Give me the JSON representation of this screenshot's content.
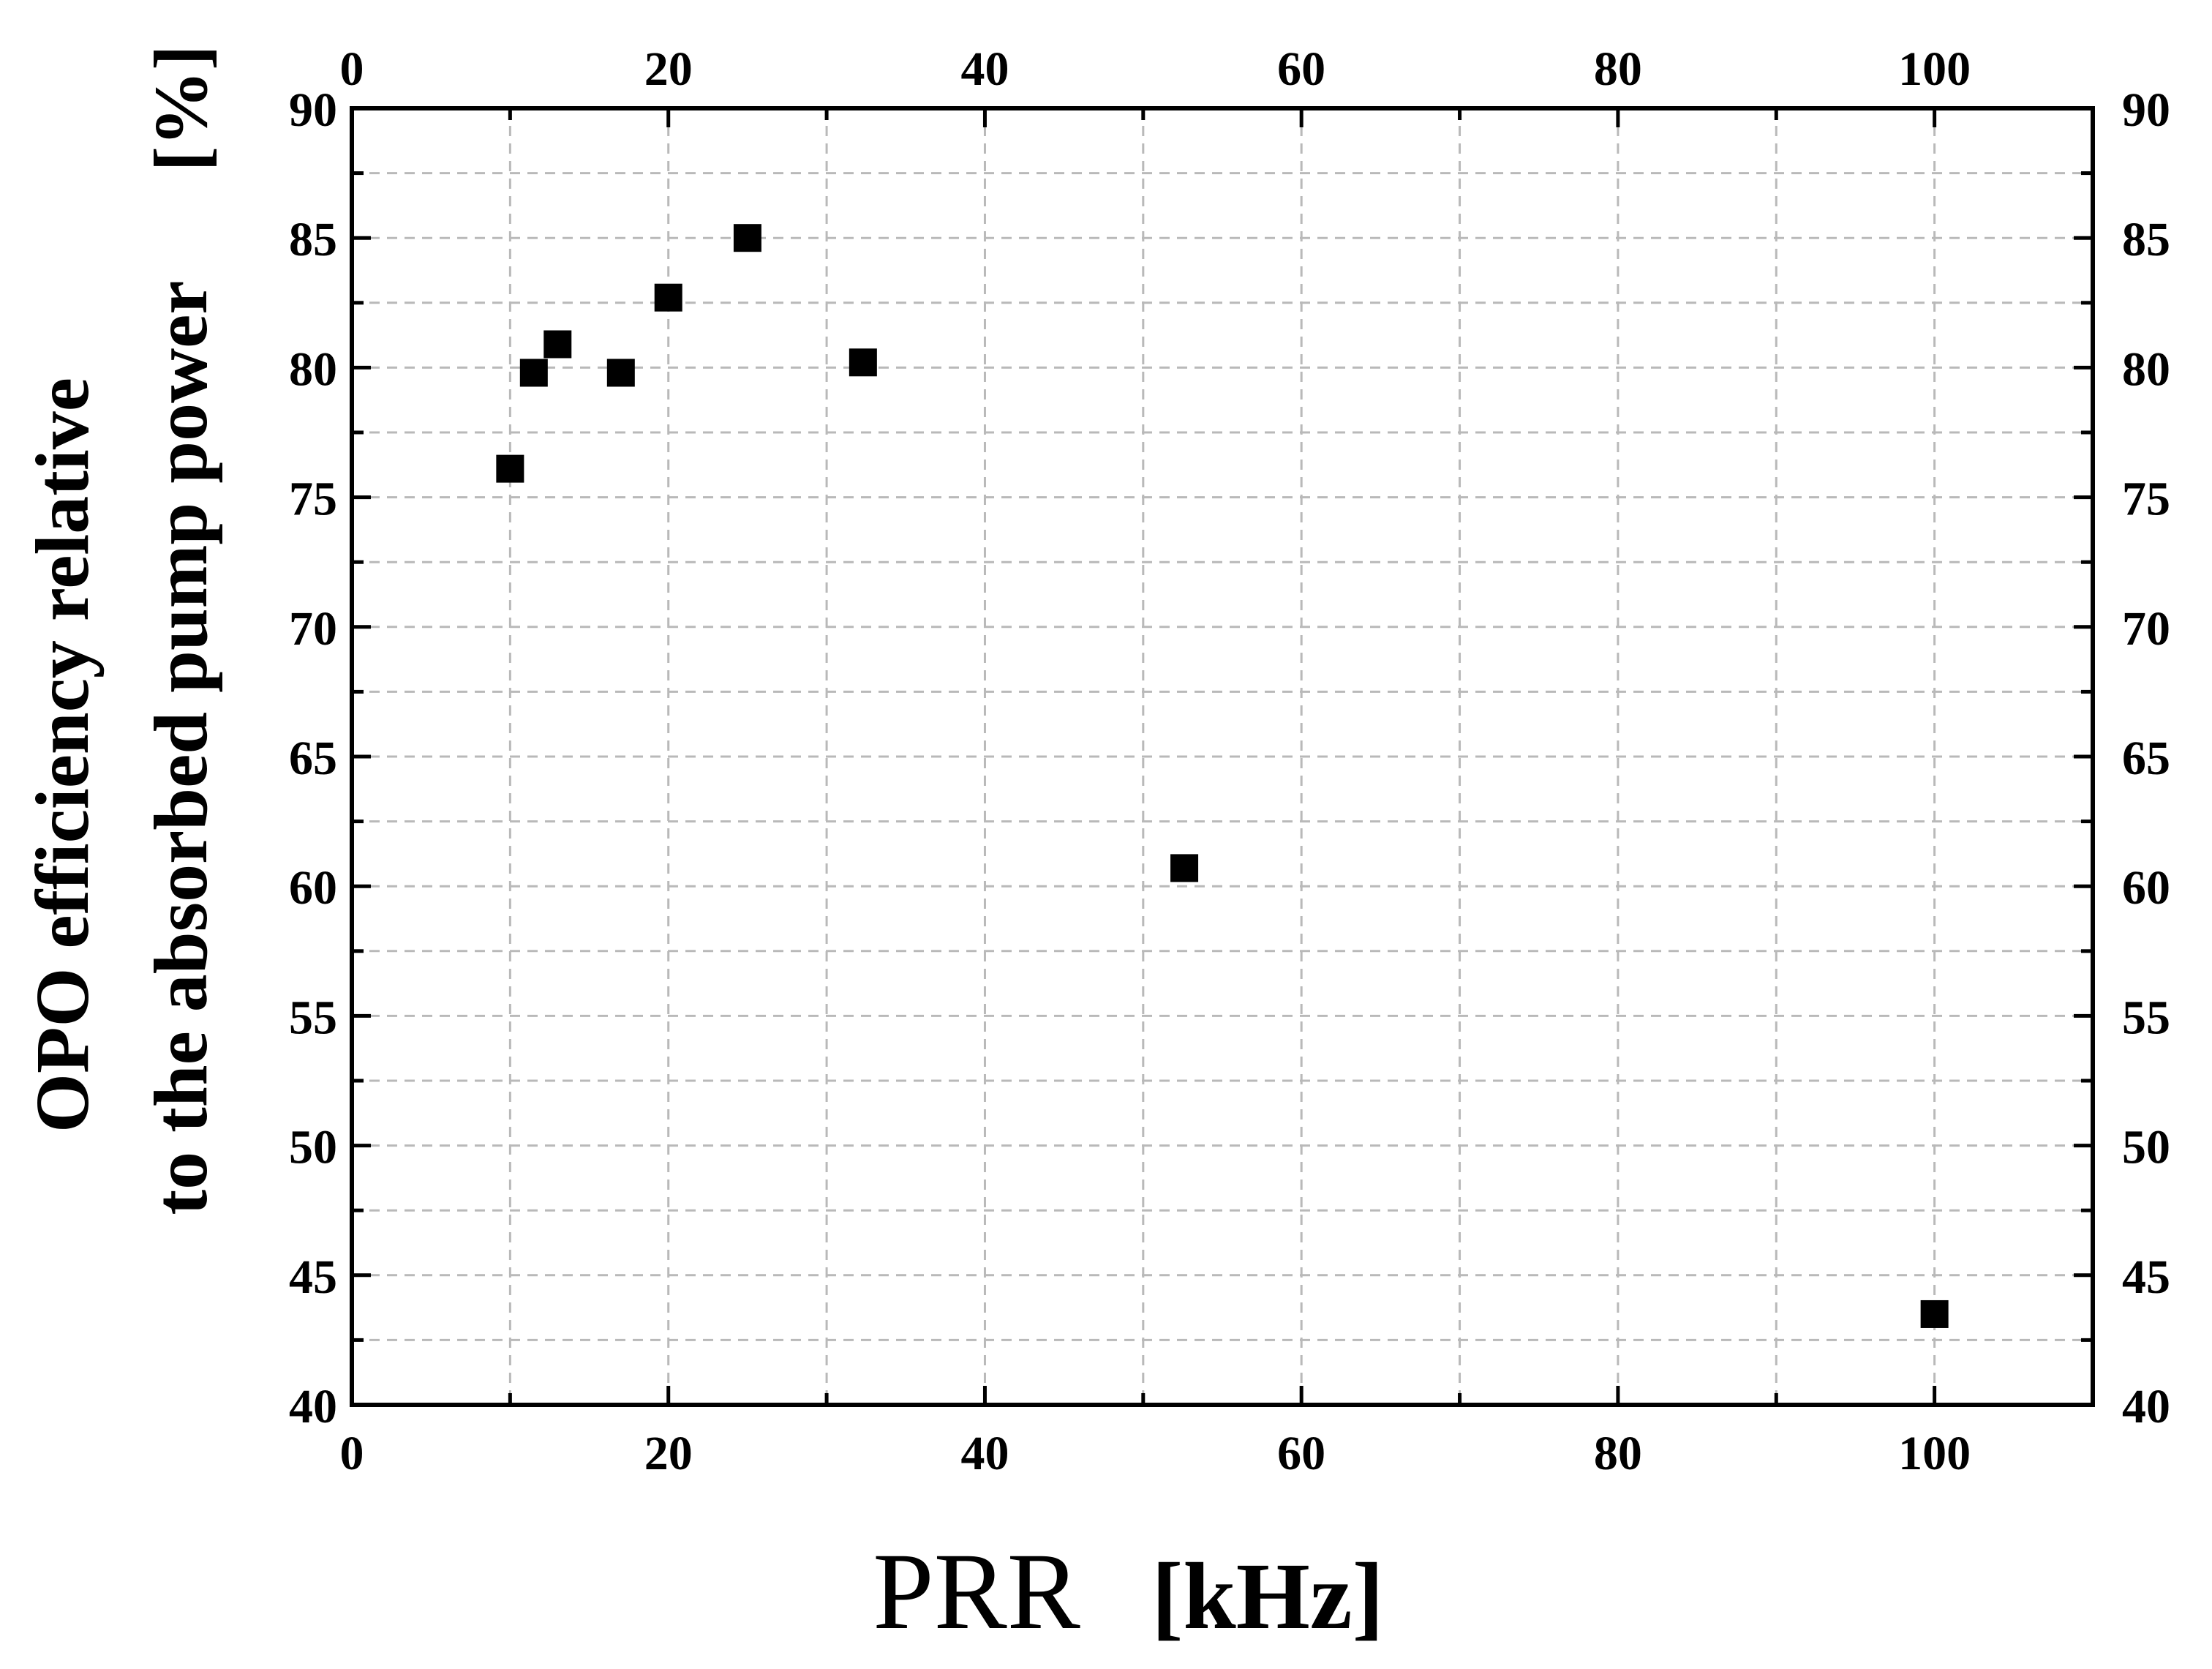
{
  "chart_data": {
    "type": "scatter",
    "xlabel": "PRR",
    "xlabel_unit": "[kHz]",
    "ylabel_line1": "OPO efficiency relative",
    "ylabel_line2": "to the absorbed pump power",
    "ylabel_unit": "[%]",
    "xlim": [
      0,
      110
    ],
    "ylim": [
      40,
      90
    ],
    "x_major_ticks": [
      0,
      20,
      40,
      60,
      80,
      100
    ],
    "x_tick_labels": [
      "0",
      "20",
      "40",
      "60",
      "80",
      "100"
    ],
    "y_major_ticks": [
      40,
      45,
      50,
      55,
      60,
      65,
      70,
      75,
      80,
      85,
      90
    ],
    "y_tick_labels": [
      "40",
      "45",
      "50",
      "55",
      "60",
      "65",
      "70",
      "75",
      "80",
      "85",
      "90"
    ],
    "grid": true,
    "mirror_axes": true,
    "marker": "square",
    "marker_color": "#000000",
    "series": [
      {
        "x": [
          10,
          11.5,
          13,
          17,
          20,
          25,
          32.3,
          52.6,
          100
        ],
        "y": [
          76.1,
          79.8,
          80.9,
          79.8,
          82.7,
          85,
          80.2,
          60.7,
          43.5
        ]
      }
    ]
  }
}
